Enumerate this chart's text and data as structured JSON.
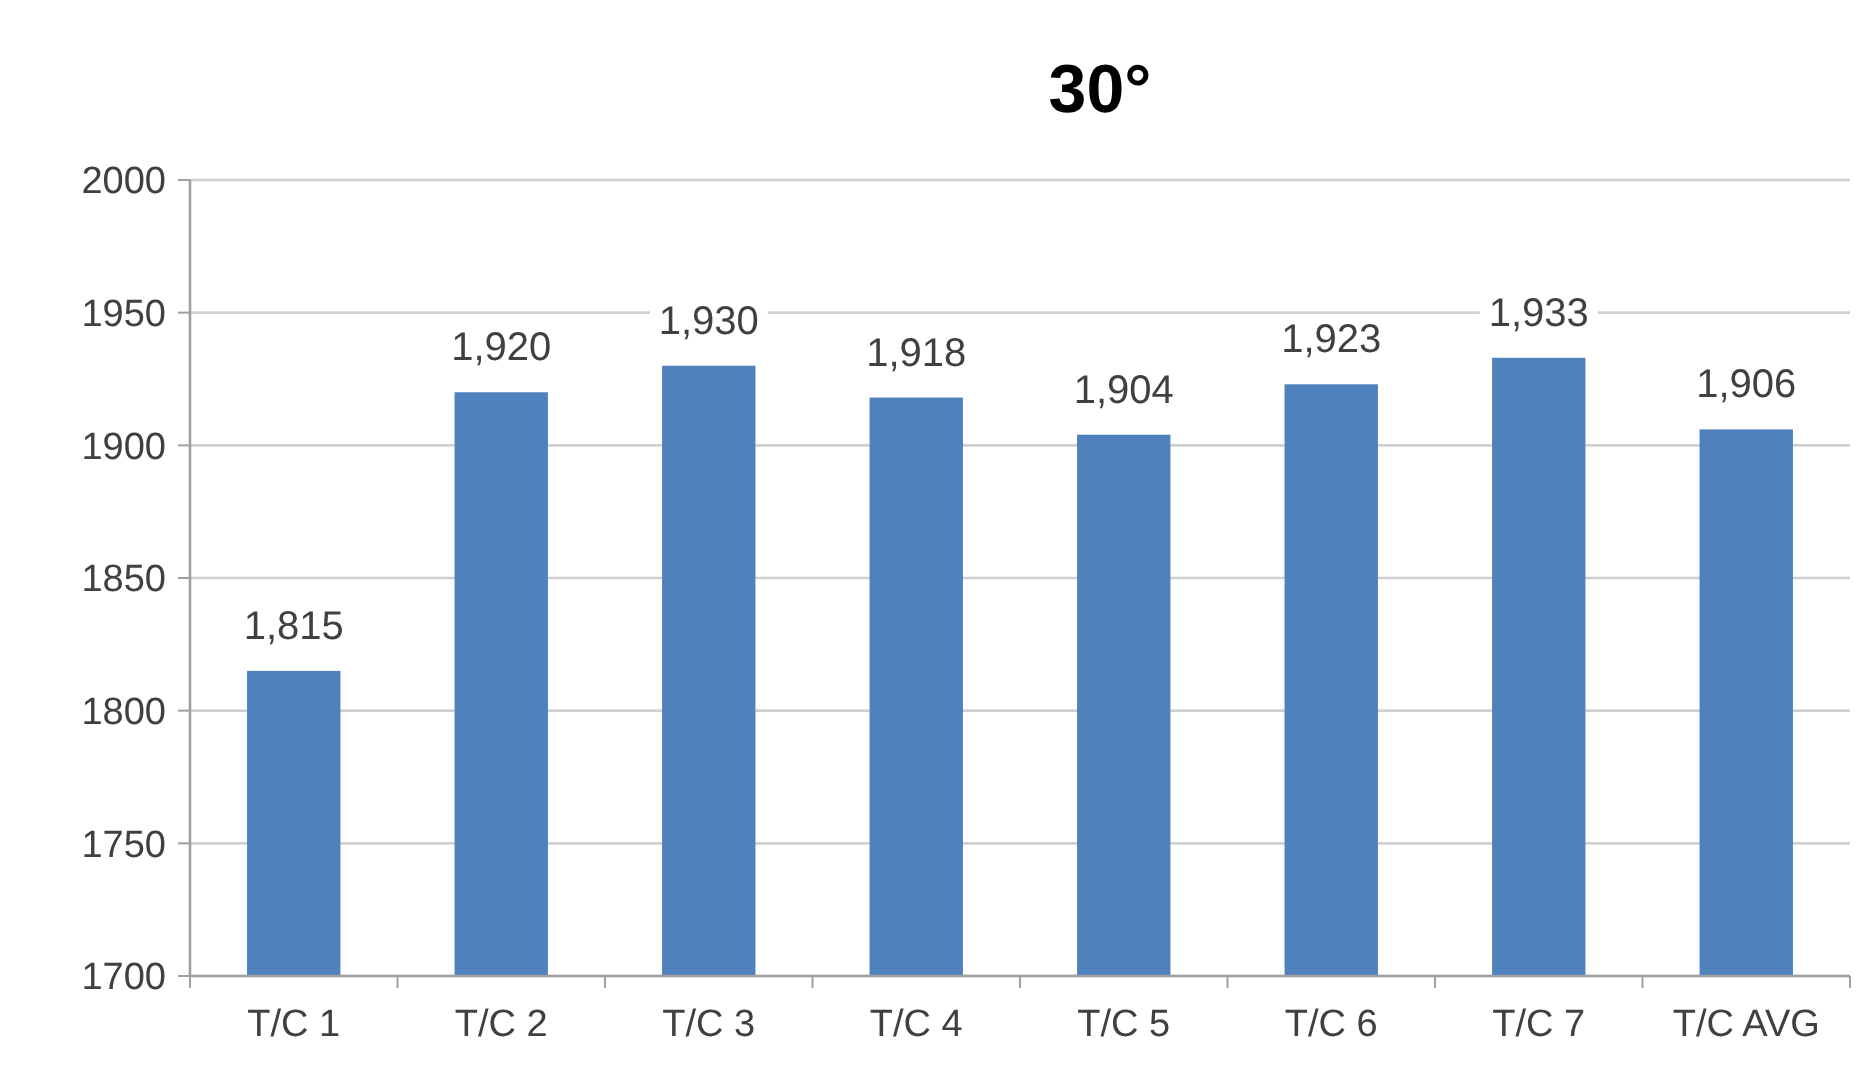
{
  "chart_data": {
    "type": "bar",
    "title": "30°",
    "categories": [
      "T/C 1",
      "T/C 2",
      "T/C 3",
      "T/C 4",
      "T/C 5",
      "T/C 6",
      "T/C 7",
      "T/C AVG"
    ],
    "values": [
      1815,
      1920,
      1930,
      1918,
      1904,
      1923,
      1933,
      1906
    ],
    "color": "#4f81bd",
    "ylim": [
      1700,
      2000
    ],
    "yticks": [
      1700,
      1750,
      1800,
      1850,
      1900,
      1950,
      2000
    ],
    "grid": "y",
    "value_labels": [
      "1,815",
      "1,920",
      "1,930",
      "1,918",
      "1,904",
      "1,923",
      "1,933",
      "1,906"
    ]
  }
}
